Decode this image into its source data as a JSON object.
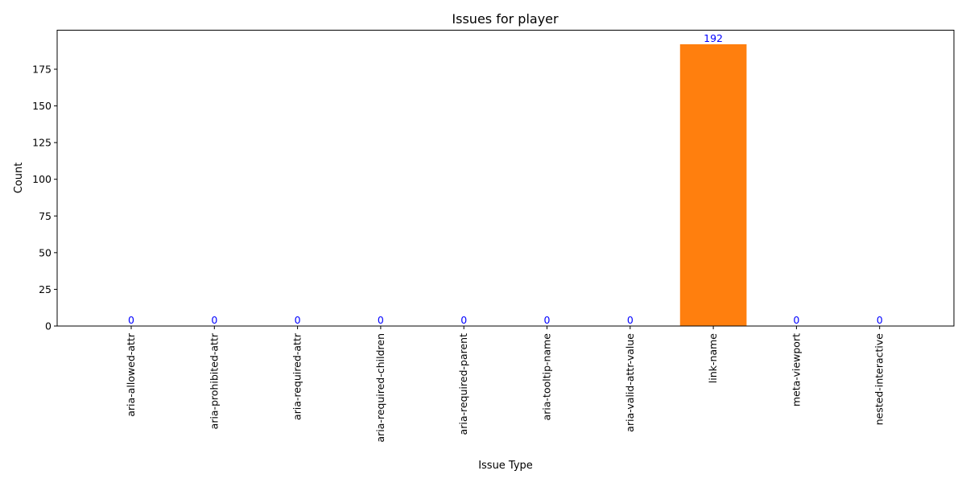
{
  "chart_data": {
    "type": "bar",
    "title": "Issues for player",
    "xlabel": "Issue Type",
    "ylabel": "Count",
    "categories": [
      "aria-allowed-attr",
      "aria-prohibited-attr",
      "aria-required-attr",
      "aria-required-children",
      "aria-required-parent",
      "aria-tooltip-name",
      "aria-valid-attr-value",
      "link-name",
      "meta-viewport",
      "nested-interactive"
    ],
    "values": [
      0,
      0,
      0,
      0,
      0,
      0,
      0,
      192,
      0,
      0
    ],
    "ylim": [
      0,
      201.6
    ],
    "yticks": [
      0,
      25,
      50,
      75,
      100,
      125,
      150,
      175
    ],
    "bar_color": "#ff7f0e",
    "data_label_color": "#0000ff",
    "grid": false,
    "legend": "none"
  }
}
